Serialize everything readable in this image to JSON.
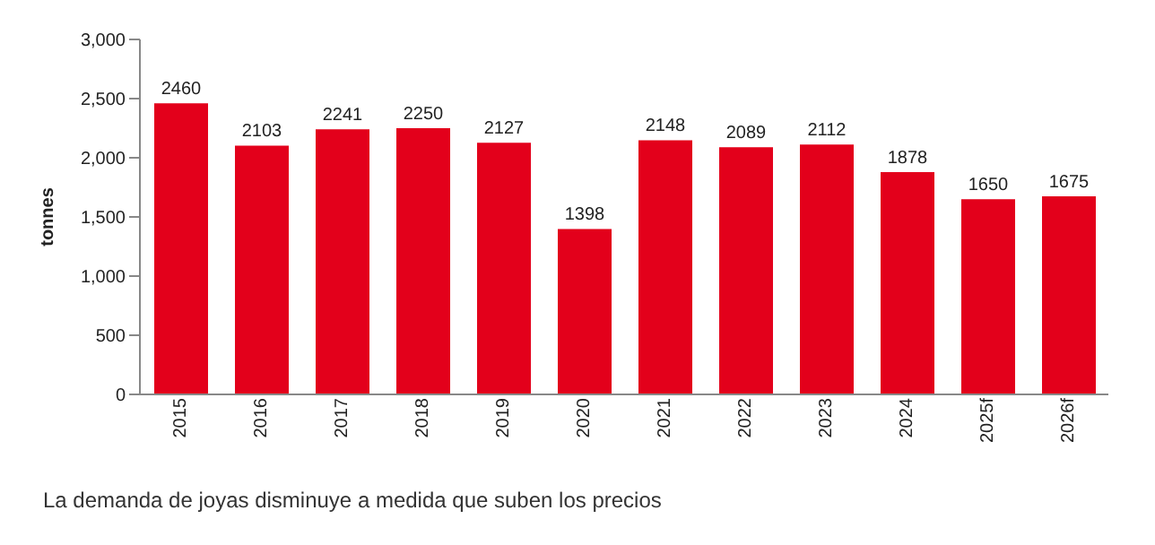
{
  "chart_data": {
    "type": "bar",
    "ylabel": "tonnes",
    "categories": [
      "2015",
      "2016",
      "2017",
      "2018",
      "2019",
      "2020",
      "2021",
      "2022",
      "2023",
      "2024",
      "2025f",
      "2026f"
    ],
    "values": [
      2460,
      2103,
      2241,
      2250,
      2127,
      1398,
      2148,
      2089,
      2112,
      1878,
      1650,
      1675
    ],
    "color": "#e3001b",
    "ylim": [
      0,
      3000
    ],
    "yticks": [
      {
        "value": 0,
        "label": "0"
      },
      {
        "value": 500,
        "label": "500"
      },
      {
        "value": 1000,
        "label": "1,000"
      },
      {
        "value": 1500,
        "label": "1,500"
      },
      {
        "value": 2000,
        "label": "2,000"
      },
      {
        "value": 2500,
        "label": "2,500"
      },
      {
        "value": 3000,
        "label": "3,000"
      }
    ],
    "data_labels": true,
    "grid": false,
    "legend": false,
    "annotations": [
      "La demanda de joyas disminuye a medida que suben los precios"
    ]
  }
}
